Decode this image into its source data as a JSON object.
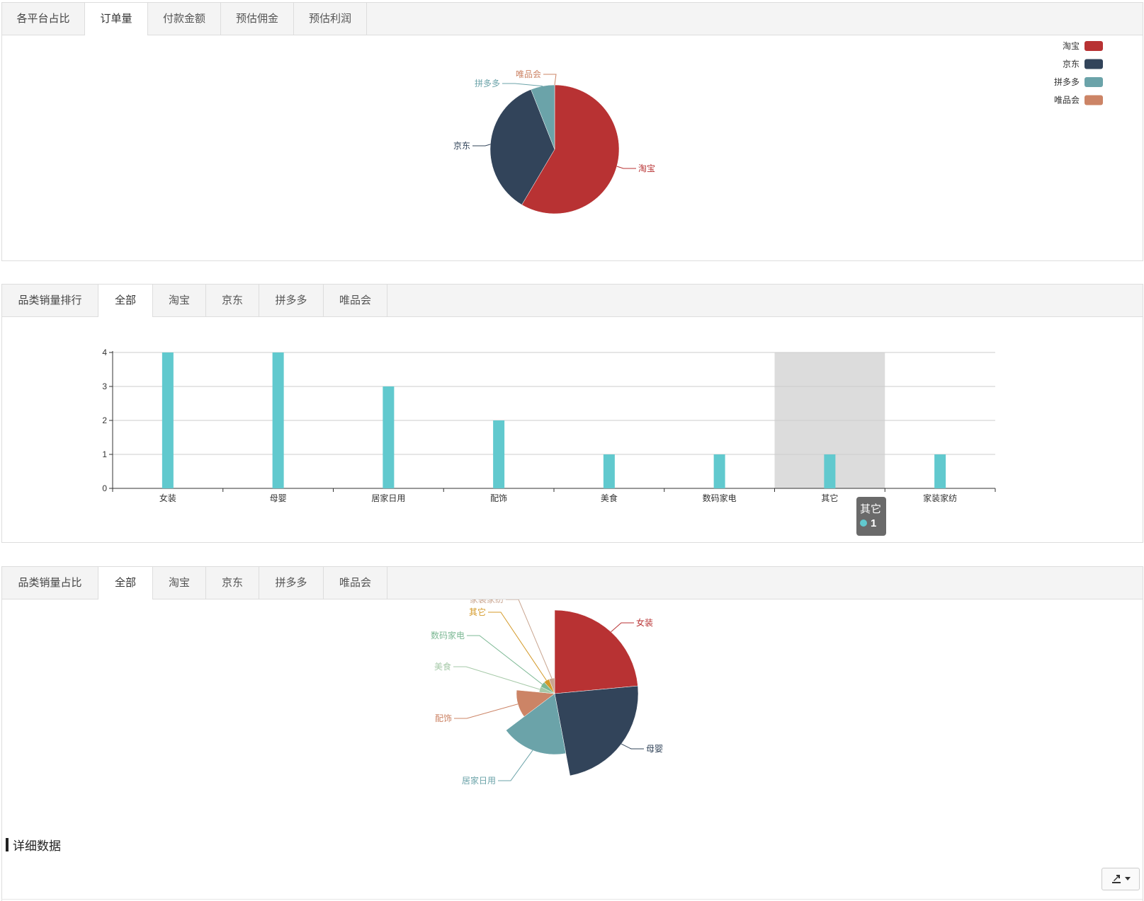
{
  "panel1": {
    "tabs": [
      "各平台占比",
      "订单量",
      "付款金额",
      "预估佣金",
      "预估利润"
    ],
    "active_index": 1
  },
  "panel2": {
    "tabs": [
      "品类销量排行",
      "全部",
      "淘宝",
      "京东",
      "拼多多",
      "唯品会"
    ],
    "active_index": 1
  },
  "panel3": {
    "tabs": [
      "品类销量占比",
      "全部",
      "淘宝",
      "京东",
      "拼多多",
      "唯品会"
    ],
    "active_index": 1
  },
  "colors": {
    "taobao": "#b83233",
    "jd": "#32445a",
    "pdd": "#6ba3a9",
    "vip": "#cc8466",
    "bar": "#61c9ce",
    "gold": "#d49a2a",
    "green": "#7cb894",
    "sage": "#a6c9a8",
    "tan": "#c9a590",
    "pink": "#d8c3c3"
  },
  "chart_data": [
    {
      "type": "pie",
      "labels": [
        "淘宝",
        "京东",
        "拼多多",
        "唯品会"
      ],
      "values": [
        58.5,
        35.5,
        6.0,
        0.0
      ],
      "legend": {
        "items": [
          "淘宝",
          "京东",
          "拼多多",
          "唯品会"
        ],
        "position": "top-right"
      }
    },
    {
      "type": "bar",
      "categories": [
        "女装",
        "母婴",
        "居家日用",
        "配饰",
        "美食",
        "数码家电",
        "其它",
        "家装家纺"
      ],
      "values": [
        4,
        4,
        3,
        2,
        1,
        1,
        1,
        1
      ],
      "ylim": [
        0,
        4
      ],
      "yticks": [
        "0",
        "1",
        "2",
        "3",
        "4"
      ],
      "grid": true,
      "tooltip": {
        "category": "其它",
        "value": "1"
      }
    },
    {
      "type": "pie",
      "labels": [
        "女装",
        "母婴",
        "居家日用",
        "配饰",
        "美食",
        "数码家电",
        "其它",
        "家装家纺"
      ],
      "values": [
        4,
        4,
        3,
        2,
        1,
        1,
        1,
        1
      ]
    }
  ],
  "detail": {
    "title": "详细数据",
    "export_icon": "export-icon"
  }
}
